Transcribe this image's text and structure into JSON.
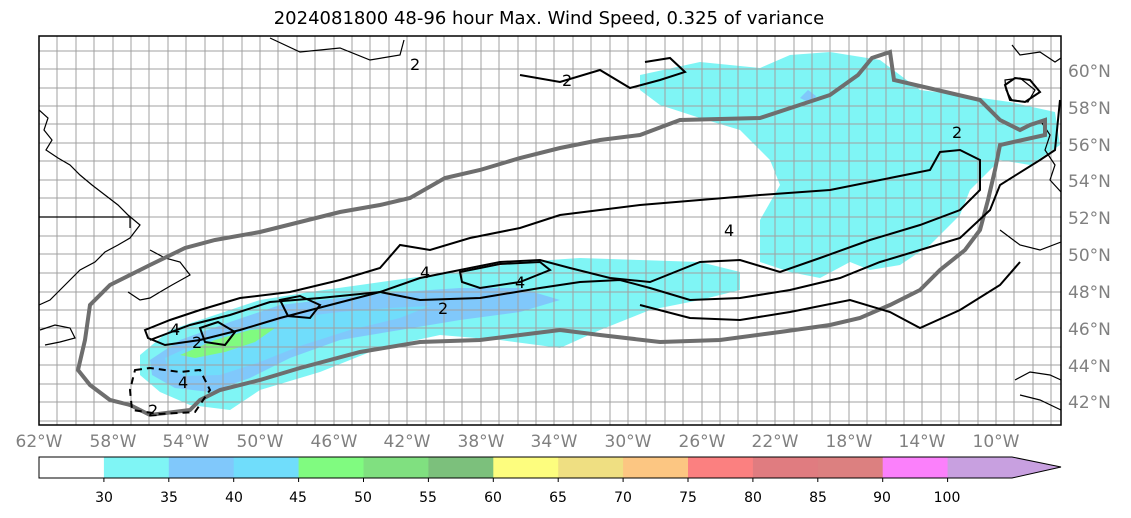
{
  "title": "2024081800 48-96 hour Max. Wind Speed, 0.325 of variance",
  "latitude_labels": [
    "60°N",
    "58°N",
    "56°N",
    "54°N",
    "52°N",
    "50°N",
    "48°N",
    "46°N",
    "44°N",
    "42°N"
  ],
  "longitude_labels": [
    "62°W",
    "58°W",
    "54°W",
    "50°W",
    "46°W",
    "42°W",
    "38°W",
    "34°W",
    "30°W",
    "26°W",
    "22°W",
    "18°W",
    "14°W",
    "10°W"
  ],
  "colorbar": {
    "tick_labels": [
      "30",
      "35",
      "40",
      "45",
      "50",
      "55",
      "60",
      "65",
      "70",
      "75",
      "80",
      "85",
      "90",
      "100"
    ],
    "colors": [
      "#ffffff",
      "#7ff5f5",
      "#80c8fb",
      "#70ddfb",
      "#80fb80",
      "#80e080",
      "#7cc07c",
      "#fdfd7e",
      "#efdf82",
      "#fcc682",
      "#fb8080",
      "#e07c80",
      "#dc8080",
      "#fb80fb",
      "#c8a0e0"
    ],
    "extend": "max"
  },
  "contour_labels": [
    "2",
    "2",
    "2",
    "4",
    "4",
    "4",
    "4",
    "2",
    "2",
    "4",
    "2"
  ]
}
